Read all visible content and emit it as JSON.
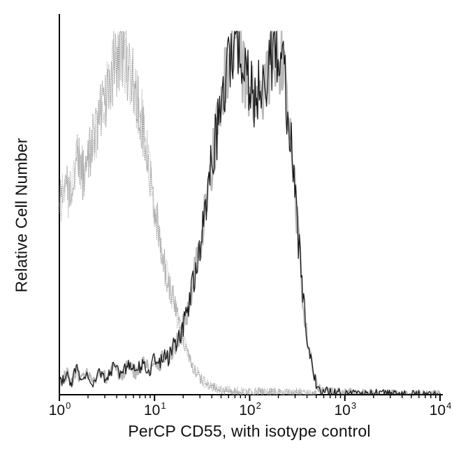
{
  "chart_data": {
    "type": "area",
    "subtype": "flow-cytometry-histogram-overlay",
    "title": "",
    "xlabel": "PerCP CD55, with isotype control",
    "ylabel": "Relative Cell Number",
    "x_scale": "log10",
    "x_range_exponents": [
      0,
      4
    ],
    "x_tick_exponents": [
      0,
      1,
      2,
      3,
      4
    ],
    "x_tick_base": "10",
    "minor_ticks": "log minor ticks at 2-9 within each decade",
    "y_axis": "relative, unlabeled (no y ticks)",
    "grid": false,
    "legend": "none",
    "background_color": "#ffffff",
    "axis_color": "#000000",
    "series": [
      {
        "name": "isotype control",
        "style": "dotted",
        "color": "#9a9a9a",
        "peak_x_log10": 0.65,
        "peak_x_value": 4.5,
        "peak_relative_height": 0.96,
        "envelope": [
          [
            0.0,
            0.52
          ],
          [
            0.05,
            0.58
          ],
          [
            0.1,
            0.55
          ],
          [
            0.15,
            0.62
          ],
          [
            0.2,
            0.66
          ],
          [
            0.25,
            0.6
          ],
          [
            0.3,
            0.63
          ],
          [
            0.35,
            0.7
          ],
          [
            0.4,
            0.74
          ],
          [
            0.45,
            0.78
          ],
          [
            0.5,
            0.84
          ],
          [
            0.55,
            0.88
          ],
          [
            0.6,
            0.92
          ],
          [
            0.65,
            0.96
          ],
          [
            0.7,
            0.92
          ],
          [
            0.75,
            0.88
          ],
          [
            0.8,
            0.84
          ],
          [
            0.85,
            0.78
          ],
          [
            0.9,
            0.7
          ],
          [
            0.95,
            0.62
          ],
          [
            1.0,
            0.52
          ],
          [
            1.05,
            0.44
          ],
          [
            1.1,
            0.36
          ],
          [
            1.15,
            0.3
          ],
          [
            1.2,
            0.26
          ],
          [
            1.25,
            0.2
          ],
          [
            1.3,
            0.15
          ],
          [
            1.35,
            0.11
          ],
          [
            1.4,
            0.08
          ],
          [
            1.45,
            0.06
          ],
          [
            1.5,
            0.04
          ],
          [
            1.6,
            0.02
          ],
          [
            1.7,
            0.012
          ],
          [
            1.9,
            0.008
          ],
          [
            2.2,
            0.006
          ],
          [
            2.5,
            0.004
          ],
          [
            2.7,
            0.0
          ]
        ]
      },
      {
        "name": "PerCP CD55",
        "style": "solid",
        "color": "#1a1a1a",
        "peak_x_log10": [
          1.85,
          2.3
        ],
        "peak_x_value": [
          70,
          200
        ],
        "peak_relative_height": [
          0.97,
          0.95
        ],
        "envelope": [
          [
            0.0,
            0.03
          ],
          [
            0.08,
            0.06
          ],
          [
            0.12,
            0.03
          ],
          [
            0.18,
            0.07
          ],
          [
            0.22,
            0.04
          ],
          [
            0.3,
            0.06
          ],
          [
            0.35,
            0.03
          ],
          [
            0.42,
            0.07
          ],
          [
            0.5,
            0.04
          ],
          [
            0.58,
            0.08
          ],
          [
            0.65,
            0.05
          ],
          [
            0.72,
            0.08
          ],
          [
            0.8,
            0.06
          ],
          [
            0.88,
            0.09
          ],
          [
            0.95,
            0.07
          ],
          [
            1.0,
            0.1
          ],
          [
            1.05,
            0.08
          ],
          [
            1.1,
            0.11
          ],
          [
            1.15,
            0.1
          ],
          [
            1.2,
            0.13
          ],
          [
            1.25,
            0.15
          ],
          [
            1.3,
            0.19
          ],
          [
            1.35,
            0.24
          ],
          [
            1.4,
            0.3
          ],
          [
            1.45,
            0.37
          ],
          [
            1.5,
            0.45
          ],
          [
            1.55,
            0.54
          ],
          [
            1.6,
            0.63
          ],
          [
            1.65,
            0.72
          ],
          [
            1.7,
            0.81
          ],
          [
            1.75,
            0.89
          ],
          [
            1.8,
            0.94
          ],
          [
            1.85,
            0.97
          ],
          [
            1.9,
            0.92
          ],
          [
            1.95,
            0.87
          ],
          [
            2.0,
            0.84
          ],
          [
            2.05,
            0.82
          ],
          [
            2.1,
            0.86
          ],
          [
            2.15,
            0.84
          ],
          [
            2.2,
            0.89
          ],
          [
            2.25,
            0.93
          ],
          [
            2.3,
            0.95
          ],
          [
            2.35,
            0.89
          ],
          [
            2.4,
            0.79
          ],
          [
            2.45,
            0.64
          ],
          [
            2.5,
            0.47
          ],
          [
            2.55,
            0.3
          ],
          [
            2.6,
            0.16
          ],
          [
            2.65,
            0.08
          ],
          [
            2.7,
            0.03
          ],
          [
            2.75,
            0.012
          ],
          [
            2.85,
            0.006
          ],
          [
            3.0,
            0.004
          ],
          [
            3.3,
            0.003
          ],
          [
            3.6,
            0.0
          ],
          [
            4.0,
            0.0
          ]
        ]
      }
    ]
  }
}
